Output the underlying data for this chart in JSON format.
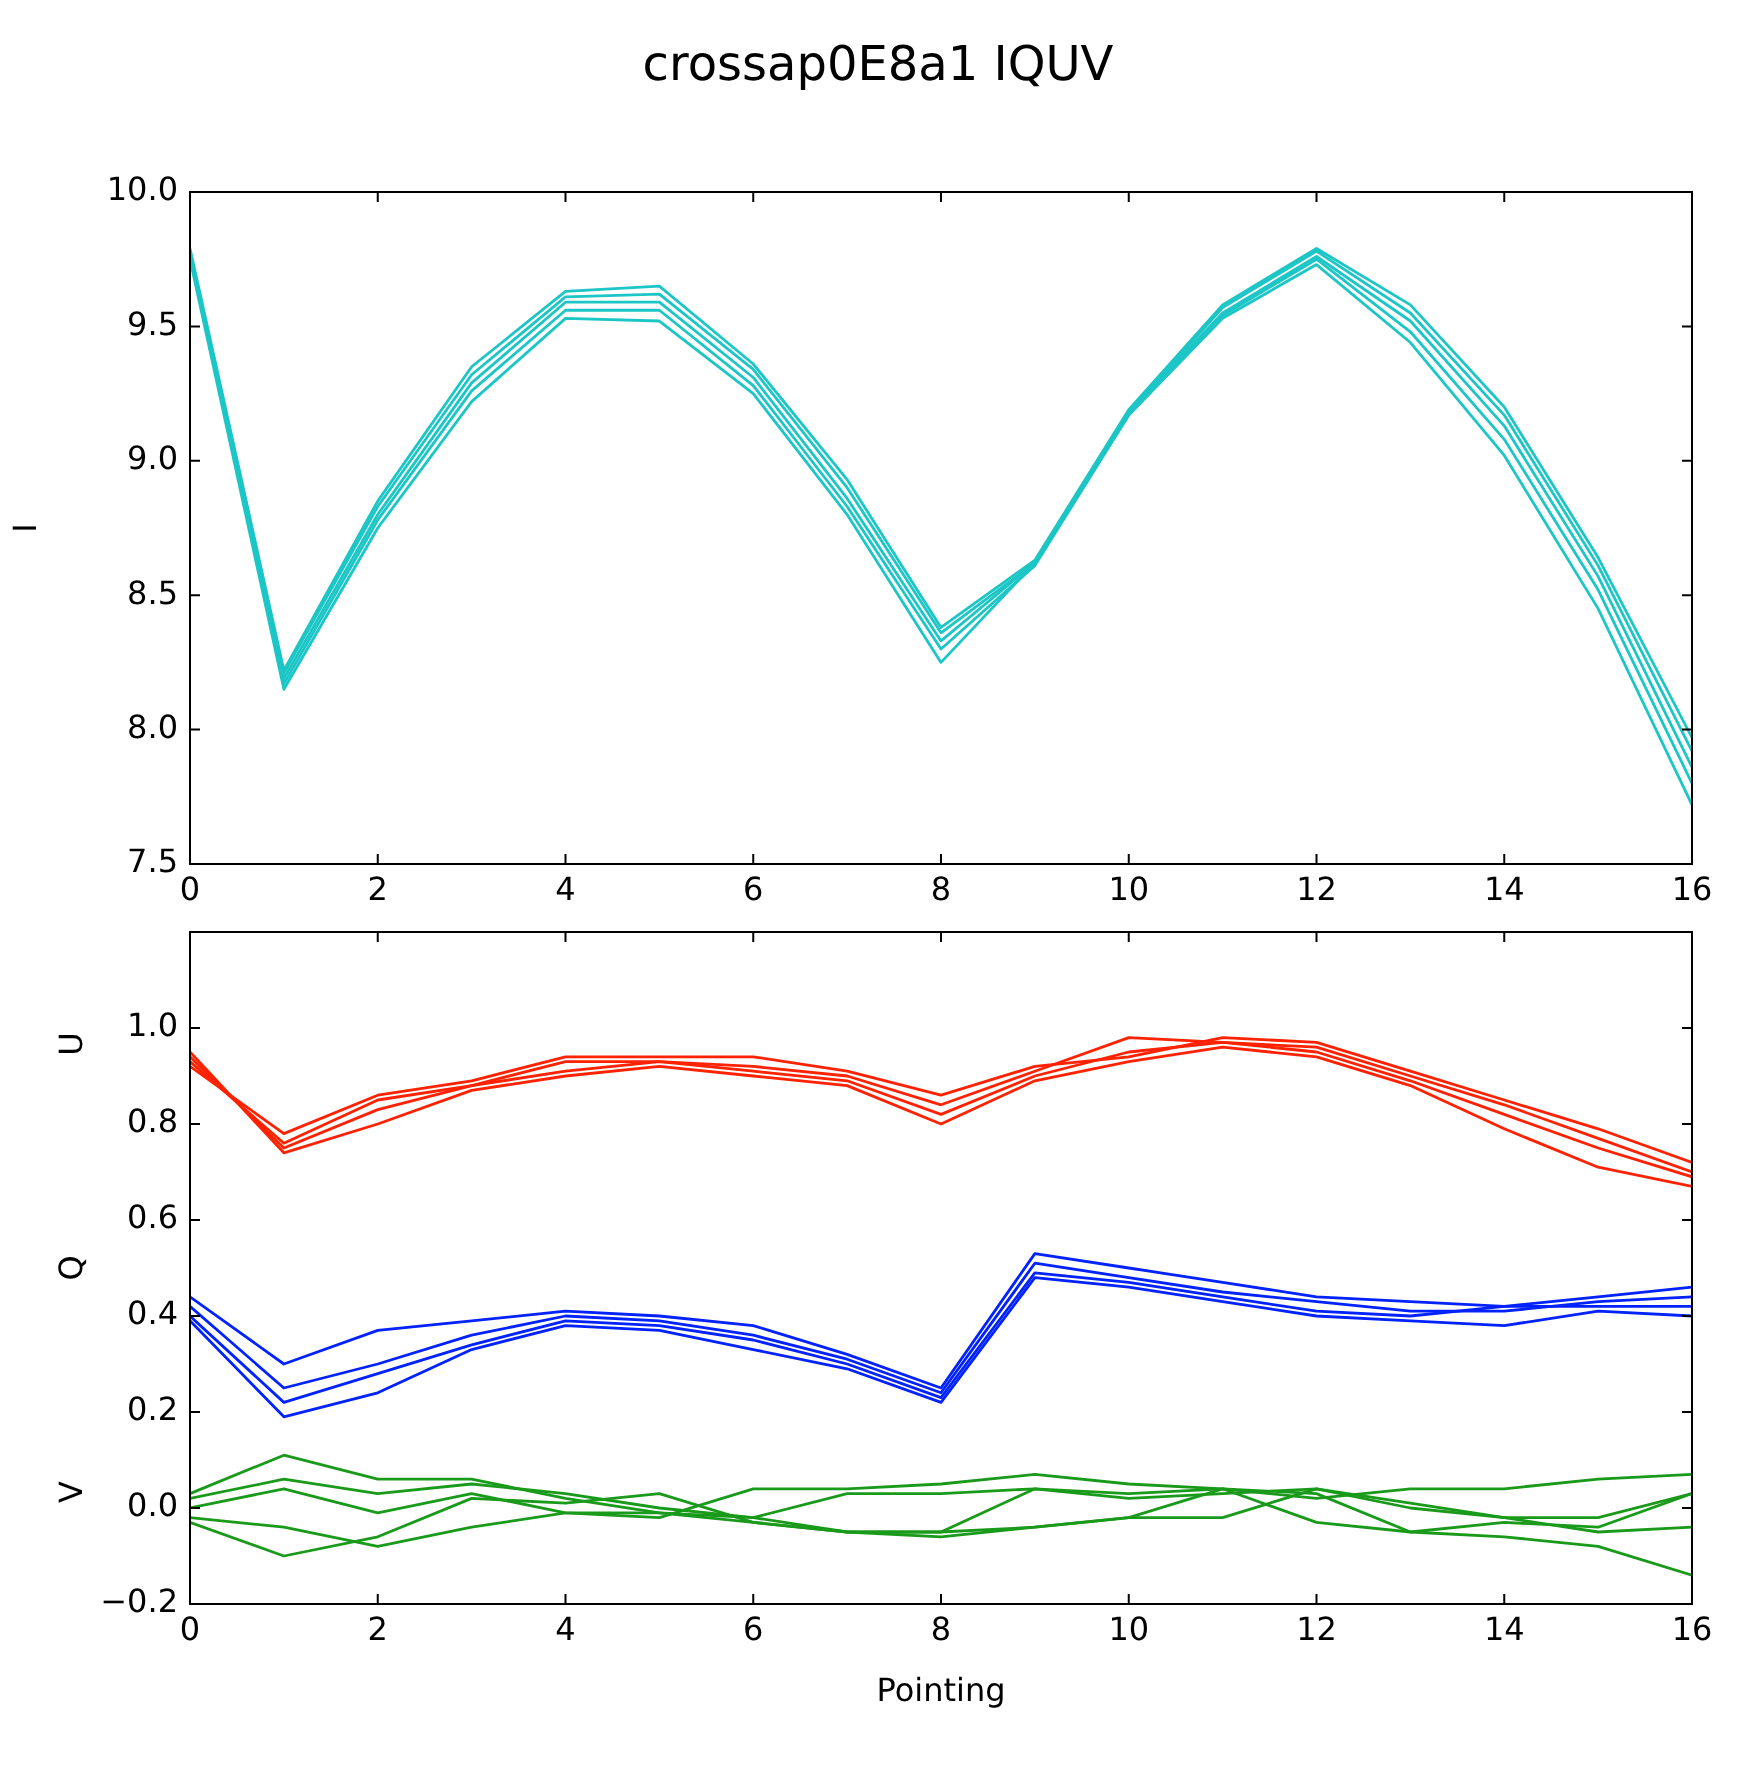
{
  "chart_data": [
    {
      "type": "line",
      "title": "crossap0E8a1 IQUV",
      "ylabel": "I",
      "x": [
        0,
        1,
        2,
        3,
        4,
        5,
        6,
        7,
        8,
        9,
        10,
        11,
        12,
        13,
        14,
        15,
        16
      ],
      "xlim": [
        0,
        16
      ],
      "xticks": [
        0,
        2,
        4,
        6,
        8,
        10,
        12,
        14,
        16
      ],
      "ylim": [
        7.5,
        10.0
      ],
      "yticks": [
        {
          "value": 7.5,
          "label": "7.5"
        },
        {
          "value": 8,
          "label": "8.0"
        },
        {
          "value": 8.5,
          "label": "8.5"
        },
        {
          "value": 9,
          "label": "9.0"
        },
        {
          "value": 9.5,
          "label": "9.5"
        },
        {
          "value": 10,
          "label": "10.0"
        }
      ],
      "legend": false,
      "marker": "none",
      "line_style": "solid",
      "series": [
        {
          "color": "#1cc6c6",
          "values": [
            9.75,
            8.15,
            8.75,
            9.22,
            9.53,
            9.52,
            9.25,
            8.8,
            8.25,
            8.62,
            9.17,
            9.53,
            9.73,
            9.44,
            9.02,
            8.45,
            7.72
          ]
        },
        {
          "color": "#1cc6c6",
          "values": [
            9.76,
            8.17,
            8.78,
            9.26,
            9.56,
            9.56,
            9.28,
            8.83,
            8.3,
            8.61,
            9.17,
            9.54,
            9.75,
            9.48,
            9.08,
            8.52,
            7.8
          ]
        },
        {
          "color": "#1cc6c6",
          "values": [
            9.77,
            8.19,
            8.8,
            9.29,
            9.59,
            9.59,
            9.31,
            8.86,
            8.33,
            8.62,
            9.18,
            9.55,
            9.76,
            9.52,
            9.13,
            8.57,
            7.86
          ]
        },
        {
          "color": "#1cc6c6",
          "values": [
            9.78,
            8.21,
            8.83,
            9.32,
            9.61,
            9.62,
            9.34,
            8.9,
            8.36,
            8.62,
            9.18,
            9.57,
            9.78,
            9.55,
            9.17,
            8.61,
            7.92
          ]
        },
        {
          "color": "#1cc6c6",
          "values": [
            9.79,
            8.22,
            8.85,
            9.35,
            9.63,
            9.65,
            9.36,
            8.93,
            8.38,
            8.63,
            9.19,
            9.58,
            9.79,
            9.58,
            9.2,
            8.64,
            7.97
          ]
        }
      ]
    },
    {
      "type": "line",
      "xlabel": "Pointing",
      "x": [
        0,
        1,
        2,
        3,
        4,
        5,
        6,
        7,
        8,
        9,
        10,
        11,
        12,
        13,
        14,
        15,
        16
      ],
      "xlim": [
        0,
        16
      ],
      "xticks": [
        0,
        2,
        4,
        6,
        8,
        10,
        12,
        14,
        16
      ],
      "ylim": [
        -0.2,
        1.2
      ],
      "yticks": [
        {
          "value": -0.2,
          "label": "−0.2"
        },
        {
          "value": 0,
          "label": "0.0"
        },
        {
          "value": 0.2,
          "label": "0.2"
        },
        {
          "value": 0.4,
          "label": "0.4"
        },
        {
          "value": 0.6,
          "label": "0.6"
        },
        {
          "value": 0.8,
          "label": "0.8"
        },
        {
          "value": 1.0,
          "label": "1.0"
        }
      ],
      "legend": false,
      "marker": "none",
      "line_style": "solid",
      "annotations": [
        "U",
        "Q",
        "V"
      ],
      "series": [
        {
          "color": "#ff2200",
          "values": [
            0.95,
            0.74,
            0.8,
            0.87,
            0.9,
            0.92,
            0.9,
            0.88,
            0.8,
            0.89,
            0.93,
            0.96,
            0.94,
            0.88,
            0.79,
            0.71,
            0.67
          ]
        },
        {
          "color": "#ff2200",
          "values": [
            0.94,
            0.75,
            0.83,
            0.88,
            0.91,
            0.93,
            0.91,
            0.89,
            0.82,
            0.9,
            0.95,
            0.97,
            0.95,
            0.89,
            0.82,
            0.75,
            0.69
          ]
        },
        {
          "color": "#ff2200",
          "values": [
            0.93,
            0.76,
            0.85,
            0.88,
            0.93,
            0.93,
            0.92,
            0.9,
            0.84,
            0.91,
            0.98,
            0.97,
            0.96,
            0.9,
            0.84,
            0.77,
            0.7
          ]
        },
        {
          "color": "#ff2200",
          "values": [
            0.92,
            0.78,
            0.86,
            0.89,
            0.94,
            0.94,
            0.94,
            0.91,
            0.86,
            0.92,
            0.94,
            0.98,
            0.97,
            0.91,
            0.85,
            0.79,
            0.72
          ]
        },
        {
          "color": "#0022ff",
          "values": [
            0.44,
            0.3,
            0.37,
            0.39,
            0.41,
            0.4,
            0.38,
            0.32,
            0.25,
            0.53,
            0.5,
            0.47,
            0.44,
            0.43,
            0.42,
            0.44,
            0.46
          ]
        },
        {
          "color": "#0022ff",
          "values": [
            0.42,
            0.25,
            0.3,
            0.36,
            0.4,
            0.39,
            0.36,
            0.31,
            0.24,
            0.51,
            0.48,
            0.45,
            0.43,
            0.41,
            0.41,
            0.43,
            0.44
          ]
        },
        {
          "color": "#0022ff",
          "values": [
            0.4,
            0.22,
            0.28,
            0.34,
            0.39,
            0.38,
            0.35,
            0.3,
            0.23,
            0.49,
            0.47,
            0.44,
            0.41,
            0.4,
            0.42,
            0.42,
            0.42
          ]
        },
        {
          "color": "#0022ff",
          "values": [
            0.39,
            0.19,
            0.24,
            0.33,
            0.38,
            0.37,
            0.33,
            0.29,
            0.22,
            0.48,
            0.46,
            0.43,
            0.4,
            0.39,
            0.38,
            0.41,
            0.4
          ]
        },
        {
          "color": "#1a9a1a",
          "values": [
            0.03,
            0.11,
            0.06,
            0.06,
            0.02,
            -0.01,
            -0.03,
            -0.05,
            -0.06,
            -0.04,
            -0.02,
            0.04,
            0.03,
            -0.05,
            -0.06,
            -0.08,
            -0.14
          ]
        },
        {
          "color": "#1a9a1a",
          "values": [
            -0.03,
            -0.1,
            -0.06,
            0.02,
            0.01,
            0.03,
            -0.03,
            -0.05,
            -0.05,
            0.04,
            0.03,
            0.04,
            -0.03,
            -0.05,
            -0.03,
            -0.04,
            0.03
          ]
        },
        {
          "color": "#1a9a1a",
          "values": [
            0.0,
            0.04,
            -0.01,
            0.03,
            -0.01,
            -0.02,
            0.04,
            0.04,
            0.05,
            0.07,
            0.05,
            0.04,
            0.02,
            0.04,
            0.04,
            0.06,
            0.07
          ]
        },
        {
          "color": "#1a9a1a",
          "values": [
            0.02,
            0.06,
            0.03,
            0.05,
            0.03,
            0.0,
            -0.02,
            0.03,
            0.03,
            0.04,
            0.02,
            0.03,
            0.04,
            0.0,
            -0.02,
            -0.02,
            0.03
          ]
        },
        {
          "color": "#1a9a1a",
          "values": [
            -0.02,
            -0.04,
            -0.08,
            -0.04,
            -0.01,
            -0.01,
            -0.02,
            -0.05,
            -0.05,
            -0.04,
            -0.02,
            -0.02,
            0.04,
            0.01,
            -0.02,
            -0.05,
            -0.04
          ]
        }
      ]
    }
  ]
}
